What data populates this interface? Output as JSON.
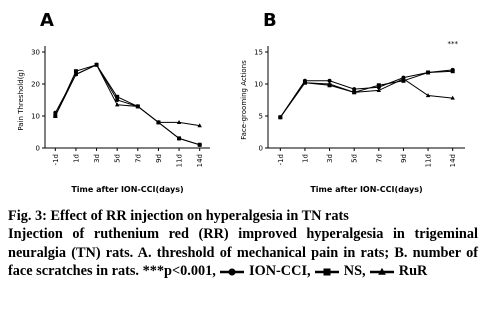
{
  "chart_data": [
    {
      "type": "line",
      "label": "A",
      "y_label": "Pain Threshold(g)",
      "x_label": "Time after ION-CCI(days)",
      "categories": [
        "-1d",
        "1d",
        "3d",
        "5d",
        "7d",
        "9d",
        "11d",
        "14d"
      ],
      "ylim": [
        0,
        30
      ],
      "yticks": [
        0,
        10,
        20,
        30
      ],
      "series": [
        {
          "name": "ION-CCI",
          "color": "#000000",
          "marker": "circle",
          "values": [
            11,
            23,
            26,
            15,
            13,
            8,
            3,
            1
          ]
        },
        {
          "name": "NS",
          "color": "#000000",
          "marker": "square",
          "values": [
            10,
            24,
            26,
            16,
            13,
            8,
            3,
            1
          ]
        },
        {
          "name": "RuR",
          "color": "#000000",
          "marker": "triangle",
          "values": [
            10,
            23,
            26,
            13.5,
            13,
            8,
            8,
            7
          ]
        }
      ]
    },
    {
      "type": "line",
      "label": "B",
      "y_label": "Face-grooming Actions",
      "x_label": "Time after ION-CCI(days)",
      "categories": [
        "-1d",
        "1d",
        "3d",
        "5d",
        "7d",
        "9d",
        "11d",
        "14d"
      ],
      "ylim": [
        0,
        15
      ],
      "yticks": [
        0,
        5,
        10,
        15
      ],
      "annotation": "***",
      "series": [
        {
          "name": "ION-CCI",
          "color": "#000000",
          "marker": "circle",
          "values": [
            4.8,
            10.5,
            10.5,
            9.2,
            9.5,
            11,
            11.8,
            12.2
          ]
        },
        {
          "name": "NS",
          "color": "#000000",
          "marker": "square",
          "values": [
            4.8,
            10.2,
            9.8,
            8.7,
            9.8,
            10.5,
            11.8,
            12
          ]
        },
        {
          "name": "RuR",
          "color": "#000000",
          "marker": "triangle",
          "values": [
            4.8,
            10.2,
            10,
            8.7,
            9,
            10.8,
            8.2,
            7.8
          ]
        }
      ]
    }
  ],
  "caption": {
    "title": "Fig. 3: Effect of RR injection on hyperalgesia in TN rats",
    "body": "Injection of ruthenium red (RR) improved hyperalgesia in trigeminal neuralgia (TN) rats. A. threshold of mechanical pain in rats; B. number of face scratches in rats. ***p<0.001,",
    "separator": ","
  }
}
